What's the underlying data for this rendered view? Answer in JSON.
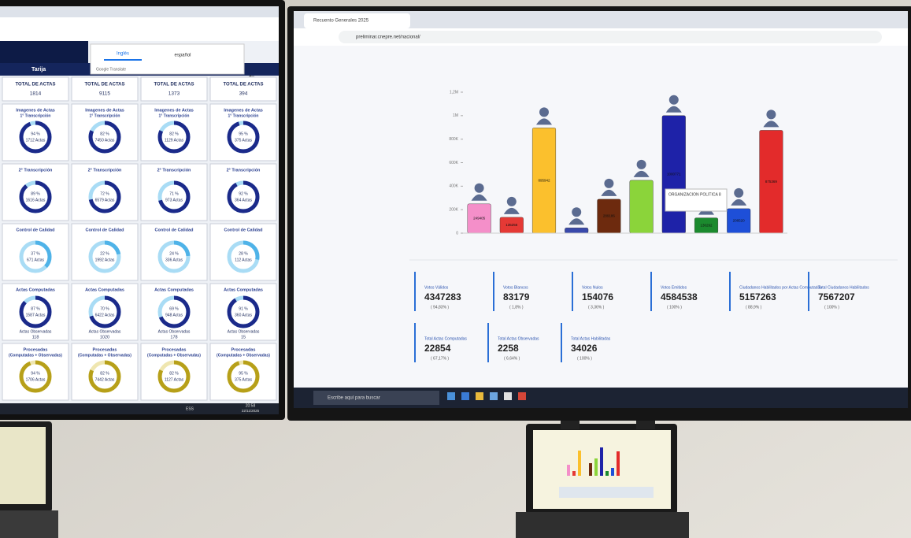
{
  "left_screen": {
    "translate_bar": {
      "options": [
        "Inglés",
        "español"
      ],
      "footer": "Google Translate"
    },
    "header": {
      "title": "Tarija",
      "suffix": "du"
    },
    "total_label": "TOTAL DE ACTAS",
    "sections": [
      {
        "title": "Imagenes de Actas",
        "subtitle": "1° Transcripción"
      },
      {
        "title": "2° Transcripción"
      },
      {
        "title": "Control de Calidad"
      },
      {
        "title": "Actas Computadas",
        "note": "Actas Observadas"
      },
      {
        "title": "Procesadas",
        "subtitle": "(Computadas + Observadas)"
      }
    ],
    "columns": [
      {
        "total": 1814,
        "cards": [
          {
            "value": 94,
            "value_label": "94 %",
            "caption": "1712 Actas"
          },
          {
            "value": 89,
            "value_label": "89 %",
            "caption": "1616 Actas"
          },
          {
            "value": 37,
            "value_label": "37 %",
            "caption": "671 Actas"
          },
          {
            "value": 87,
            "value_label": "87 %",
            "caption": "1587 Actas",
            "observed": 118
          },
          {
            "value": 94,
            "value_label": "94 %",
            "caption": "1706 Actas"
          }
        ]
      },
      {
        "total": 9115,
        "cards": [
          {
            "value": 82,
            "value_label": "82 %",
            "caption": "7450 Actas"
          },
          {
            "value": 72,
            "value_label": "72 %",
            "caption": "6579 Actas"
          },
          {
            "value": 22,
            "value_label": "22 %",
            "caption": "1992 Actas"
          },
          {
            "value": 70,
            "value_label": "70 %",
            "caption": "6422 Actas",
            "observed": 1020
          },
          {
            "value": 82,
            "value_label": "82 %",
            "caption": "7442 Actas"
          }
        ]
      },
      {
        "total": 1373,
        "cards": [
          {
            "value": 82,
            "value_label": "82 %",
            "caption": "1129 Actas"
          },
          {
            "value": 71,
            "value_label": "71 %",
            "caption": "973 Actas"
          },
          {
            "value": 24,
            "value_label": "24 %",
            "caption": "336 Actas"
          },
          {
            "value": 69,
            "value_label": "69 %",
            "caption": "948 Actas",
            "observed": 178
          },
          {
            "value": 82,
            "value_label": "82 %",
            "caption": "1127 Actas"
          }
        ]
      },
      {
        "total": 394,
        "cards": [
          {
            "value": 95,
            "value_label": "95 %",
            "caption": "375 Actas"
          },
          {
            "value": 92,
            "value_label": "92 %",
            "caption": "364 Actas"
          },
          {
            "value": 28,
            "value_label": "28 %",
            "caption": "112 Actas"
          },
          {
            "value": 91,
            "value_label": "91 %",
            "caption": "360 Actas",
            "observed": 15
          },
          {
            "value": 95,
            "value_label": "95 %",
            "caption": "375 Actas"
          }
        ]
      }
    ],
    "taskbar": {
      "tray": "ESS",
      "time": "20:58",
      "date": "22/11/2025"
    }
  },
  "right_screen": {
    "tab": "Recuento Generales 2025",
    "url": "preliminar.cnepre.net/nacional/",
    "search": "Escribe aquí para buscar",
    "stats": [
      {
        "label": "Votos Válidos",
        "value": 4347283,
        "share": "( 94,83% )"
      },
      {
        "label": "Votos Blancos",
        "value": 83179,
        "share": "( 1,8% )"
      },
      {
        "label": "Votos Nulos",
        "value": 154076,
        "share": "( 3,36% )"
      },
      {
        "label": "Votos Emitidos",
        "value": 4584538,
        "share": "( 100% )"
      },
      {
        "label": "Ciudadanos Habilitados por Actas Computadas",
        "value": 5157263,
        "share": "( 88,9% )"
      },
      {
        "label": "Total Ciudadanos Habilitados",
        "value": 7567207,
        "share": "( 100% )"
      },
      {
        "label": "Total Actas Computadas",
        "value": 22854,
        "share": "( 67,17% )"
      },
      {
        "label": "Total Actas Observadas",
        "value": 2258,
        "share": "( 6,64% )"
      },
      {
        "label": "Total Actas Habilitadas",
        "value": 34026,
        "share": "( 100% )"
      }
    ]
  },
  "chart_data": {
    "type": "bar",
    "categories": [
      null,
      null,
      null,
      null,
      null,
      null,
      null,
      null,
      null,
      null
    ],
    "values": [
      249405,
      135255,
      895942,
      45000,
      289186,
      450000,
      1000771,
      130292,
      208520,
      875369
    ],
    "value_labels": [
      "249405",
      "135255",
      "895942",
      null,
      "289186",
      null,
      "1000771",
      "130292",
      "208520",
      "875369"
    ],
    "colors": [
      "#f48fc9",
      "#e53935",
      "#fbc02d",
      "#3949ab",
      "#6d2a0e",
      "#8bd43a",
      "#1e22a8",
      "#1b8a2e",
      "#1e4fd8",
      "#e32b2b"
    ],
    "ylim": [
      0,
      1200000
    ],
    "yticks": [
      0,
      {
        "value": 200000,
        "label": "200K"
      },
      {
        "value": 400000,
        "label": "400K"
      },
      {
        "value": 600000,
        "label": "600K"
      },
      {
        "value": 800000,
        "label": "800K"
      },
      {
        "value": 1000000,
        "label": "1M"
      },
      {
        "value": 1200000,
        "label": "1,2M"
      }
    ],
    "tooltip": {
      "title": "ORGANIZACION POLITICA 8"
    }
  }
}
